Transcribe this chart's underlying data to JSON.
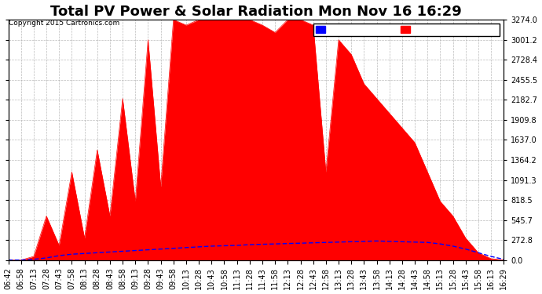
{
  "title": "Total PV Power & Solar Radiation Mon Nov 16 16:29",
  "copyright": "Copyright 2015 Cartronics.com",
  "legend_radiation_bg": "#0000ff",
  "legend_pv_bg": "#ff0000",
  "y_ticks": [
    0.0,
    272.8,
    545.7,
    818.5,
    1091.3,
    1364.2,
    1637.0,
    1909.8,
    2182.7,
    2455.5,
    2728.4,
    3001.2,
    3274.0
  ],
  "ymax": 3274.0,
  "ymin": 0.0,
  "bg_color": "#ffffff",
  "plot_bg_color": "#ffffff",
  "grid_color": "#aaaaaa",
  "red_color": "#ff0000",
  "blue_color": "#0000ff",
  "title_fontsize": 13,
  "axis_fontsize": 7,
  "x_labels": [
    "06:42",
    "06:58",
    "07:13",
    "07:28",
    "07:43",
    "07:58",
    "08:13",
    "08:28",
    "08:43",
    "08:58",
    "09:13",
    "09:28",
    "09:43",
    "09:58",
    "10:13",
    "10:28",
    "10:43",
    "10:58",
    "11:13",
    "11:28",
    "11:43",
    "11:58",
    "12:13",
    "12:28",
    "12:43",
    "12:58",
    "13:13",
    "13:28",
    "13:43",
    "13:58",
    "14:13",
    "14:28",
    "14:43",
    "14:58",
    "15:13",
    "15:28",
    "15:43",
    "15:58",
    "16:13",
    "16:29"
  ],
  "pv_values": [
    0,
    0,
    50,
    600,
    200,
    1200,
    300,
    1500,
    600,
    2200,
    800,
    3000,
    1000,
    3274,
    3200,
    3274,
    3274,
    3274,
    3274,
    3274,
    3200,
    3100,
    3274,
    3274,
    3200,
    1200,
    3000,
    2800,
    2400,
    2200,
    2000,
    1800,
    1600,
    1200,
    800,
    600,
    300,
    100,
    20,
    0
  ],
  "rad_values": [
    0,
    0,
    10,
    30,
    60,
    80,
    90,
    100,
    110,
    120,
    130,
    140,
    150,
    160,
    170,
    180,
    190,
    195,
    200,
    210,
    215,
    220,
    225,
    230,
    235,
    240,
    245,
    250,
    255,
    260,
    255,
    250,
    245,
    240,
    220,
    190,
    150,
    100,
    50,
    10
  ]
}
